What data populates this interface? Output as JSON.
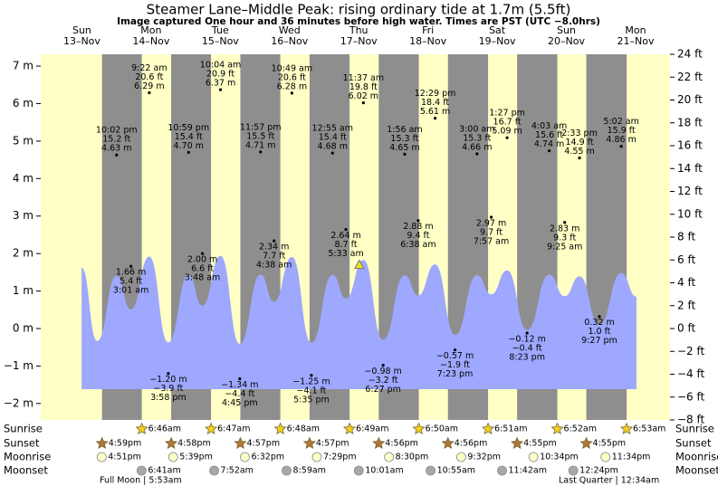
{
  "title": "Steamer Lane–Middle Peak: rising  ordinary tide at 1.7m (5.5ft)",
  "subtitle": "Image captured One hour and 36 minutes before high water. Times are PST (UTC −8.0hrs)",
  "chart_data": {
    "type": "tide",
    "ylim": [
      -2.4384,
      7.3152
    ],
    "yticks": [
      {
        "value": 7,
        "label": "7 m"
      },
      {
        "value": 6,
        "label": "6 m"
      },
      {
        "value": 5,
        "label": "5 m"
      },
      {
        "value": 4,
        "label": "4 m"
      },
      {
        "value": 3,
        "label": "3 m"
      },
      {
        "value": 2,
        "label": "2 m"
      },
      {
        "value": 1,
        "label": "1 m"
      },
      {
        "value": 0,
        "label": "0 m"
      },
      {
        "value": -1,
        "label": "−1 m"
      },
      {
        "value": -2,
        "label": "−2 m"
      }
    ],
    "y2lim": [
      -8,
      24
    ],
    "y2ticks": [
      {
        "value": 24,
        "label": "24 ft"
      },
      {
        "value": 22,
        "label": "22 ft"
      },
      {
        "value": 20,
        "label": "20 ft"
      },
      {
        "value": 18,
        "label": "18 ft"
      },
      {
        "value": 16,
        "label": "16 ft"
      },
      {
        "value": 14,
        "label": "14 ft"
      },
      {
        "value": 12,
        "label": "12 ft"
      },
      {
        "value": 10,
        "label": "10 ft"
      },
      {
        "value": 8,
        "label": "8 ft"
      },
      {
        "value": 6,
        "label": "6 ft"
      },
      {
        "value": 4,
        "label": "4 ft"
      },
      {
        "value": 2,
        "label": "2 ft"
      },
      {
        "value": 0,
        "label": "0 ft"
      },
      {
        "value": -2,
        "label": "−2 ft"
      },
      {
        "value": -4,
        "label": "−4 ft"
      },
      {
        "value": -6,
        "label": "−6 ft"
      },
      {
        "value": -8,
        "label": "−8 ft"
      }
    ],
    "colors": {
      "day": "#ffffc6",
      "night": "#8e8e8e",
      "water": "#9ea8ff",
      "date": "#e00000",
      "sunrise": "#f0d020",
      "sunset": "#b07838",
      "moonrise": "#ffffc8",
      "moonset": "#a8a8a8",
      "now": "#f0e020"
    },
    "row_labels": {
      "sunrise": "Sunrise",
      "sunset": "Sunset",
      "moonrise": "Moonrise",
      "moonset": "Moonset"
    },
    "days": [
      {
        "name": "Sun",
        "date": "13–Nov",
        "sunrise": null,
        "sunset": "4:59pm",
        "moonrise": "4:51pm",
        "moonset": null,
        "tides": [
          {
            "time": "10:02 pm",
            "m": 4.63,
            "m_label": "4.63 m",
            "ft": 15.2,
            "ft_label": "15.2 ft"
          }
        ]
      },
      {
        "name": "Mon",
        "date": "14–Nov",
        "sunrise": "6:46am",
        "sunset": "4:58pm",
        "moonrise": "5:39pm",
        "moonset": "6:41am",
        "tides": [
          {
            "time": "3:01 am",
            "m": 1.66,
            "m_label": "1.66 m",
            "ft": 5.4,
            "ft_label": "5.4 ft"
          },
          {
            "time": "9:22 am",
            "m": 6.29,
            "m_label": "6.29 m",
            "ft": 20.6,
            "ft_label": "20.6 ft"
          },
          {
            "time": "3:58 pm",
            "m": -1.2,
            "m_label": "−1.20 m",
            "ft": -3.9,
            "ft_label": "−3.9 ft"
          },
          {
            "time": "10:59 pm",
            "m": 4.7,
            "m_label": "4.70 m",
            "ft": 15.4,
            "ft_label": "15.4 ft"
          }
        ]
      },
      {
        "name": "Tue",
        "date": "15–Nov",
        "sunrise": "6:47am",
        "sunset": "4:57pm",
        "moonrise": "6:32pm",
        "moonset": "7:52am",
        "tides": [
          {
            "time": "3:48 am",
            "m": 2.0,
            "m_label": "2.00 m",
            "ft": 6.6,
            "ft_label": "6.6 ft"
          },
          {
            "time": "10:04 am",
            "m": 6.37,
            "m_label": "6.37 m",
            "ft": 20.9,
            "ft_label": "20.9 ft"
          },
          {
            "time": "4:45 pm",
            "m": -1.34,
            "m_label": "−1.34 m",
            "ft": -4.4,
            "ft_label": "−4.4 ft"
          },
          {
            "time": "11:57 pm",
            "m": 4.71,
            "m_label": "4.71 m",
            "ft": 15.5,
            "ft_label": "15.5 ft"
          }
        ]
      },
      {
        "name": "Wed",
        "date": "16–Nov",
        "sunrise": "6:48am",
        "sunset": "4:57pm",
        "moonrise": "7:29pm",
        "moonset": "8:59am",
        "tides": [
          {
            "time": "4:38 am",
            "m": 2.34,
            "m_label": "2.34 m",
            "ft": 7.7,
            "ft_label": "7.7 ft"
          },
          {
            "time": "10:49 am",
            "m": 6.28,
            "m_label": "6.28 m",
            "ft": 20.6,
            "ft_label": "20.6 ft"
          },
          {
            "time": "5:35 pm",
            "m": -1.25,
            "m_label": "−1.25 m",
            "ft": -4.1,
            "ft_label": "−4.1 ft"
          }
        ]
      },
      {
        "name": "Thu",
        "date": "17–Nov",
        "sunrise": "6:49am",
        "sunset": "4:56pm",
        "moonrise": "8:30pm",
        "moonset": "10:01am",
        "tides": [
          {
            "time": "12:55 am",
            "m": 4.68,
            "m_label": "4.68 m",
            "ft": 15.4,
            "ft_label": "15.4 ft"
          },
          {
            "time": "5:33 am",
            "m": 2.64,
            "m_label": "2.64 m",
            "ft": 8.7,
            "ft_label": "8.7 ft"
          },
          {
            "time": "11:37 am",
            "m": 6.02,
            "m_label": "6.02 m",
            "ft": 19.8,
            "ft_label": "19.8 ft"
          },
          {
            "time": "6:27 pm",
            "m": -0.98,
            "m_label": "−0.98 m",
            "ft": -3.2,
            "ft_label": "−3.2 ft"
          }
        ]
      },
      {
        "name": "Fri",
        "date": "18–Nov",
        "sunrise": "6:50am",
        "sunset": "4:56pm",
        "moonrise": "9:32pm",
        "moonset": "10:55am",
        "tides": [
          {
            "time": "1:56 am",
            "m": 4.65,
            "m_label": "4.65 m",
            "ft": 15.3,
            "ft_label": "15.3 ft"
          },
          {
            "time": "6:38 am",
            "m": 2.88,
            "m_label": "2.88 m",
            "ft": 9.4,
            "ft_label": "9.4 ft"
          },
          {
            "time": "12:29 pm",
            "m": 5.61,
            "m_label": "5.61 m",
            "ft": 18.4,
            "ft_label": "18.4 ft"
          },
          {
            "time": "7:23 pm",
            "m": -0.57,
            "m_label": "−0.57 m",
            "ft": -1.9,
            "ft_label": "−1.9 ft"
          }
        ]
      },
      {
        "name": "Sat",
        "date": "19–Nov",
        "sunrise": "6:51am",
        "sunset": "4:55pm",
        "moonrise": "10:34pm",
        "moonset": "11:42am",
        "tides": [
          {
            "time": "3:00 am",
            "m": 4.66,
            "m_label": "4.66 m",
            "ft": 15.3,
            "ft_label": "15.3 ft"
          },
          {
            "time": "7:57 am",
            "m": 2.97,
            "m_label": "2.97 m",
            "ft": 9.7,
            "ft_label": "9.7 ft"
          },
          {
            "time": "1:27 pm",
            "m": 5.09,
            "m_label": "5.09 m",
            "ft": 16.7,
            "ft_label": "16.7 ft"
          },
          {
            "time": "8:23 pm",
            "m": -0.12,
            "m_label": "−0.12 m",
            "ft": -0.4,
            "ft_label": "−0.4 ft"
          }
        ]
      },
      {
        "name": "Sun",
        "date": "20–Nov",
        "sunrise": "6:52am",
        "sunset": "4:55pm",
        "moonrise": "11:34pm",
        "moonset": "12:24pm",
        "tides": [
          {
            "time": "4:03 am",
            "m": 4.74,
            "m_label": "4.74 m",
            "ft": 15.6,
            "ft_label": "15.6 ft"
          },
          {
            "time": "9:25 am",
            "m": 2.83,
            "m_label": "2.83 m",
            "ft": 9.3,
            "ft_label": "9.3 ft"
          },
          {
            "time": "2:33 pm",
            "m": 4.55,
            "m_label": "4.55 m",
            "ft": 14.9,
            "ft_label": "14.9 ft"
          },
          {
            "time": "9:27 pm",
            "m": 0.32,
            "m_label": "0.32 m",
            "ft": 1.0,
            "ft_label": "1.0 ft"
          }
        ]
      },
      {
        "name": "Mon",
        "date": "21–Nov",
        "sunrise": "6:53am",
        "sunset": null,
        "moonrise": null,
        "moonset": null,
        "tides": [
          {
            "time": "5:02 am",
            "m": 4.86,
            "m_label": "4.86 m",
            "ft": 15.9,
            "ft_label": "15.9 ft"
          }
        ]
      }
    ],
    "tide_curve": {
      "x": [
        9.9,
        15.3,
        22.03,
        27.02,
        33.37,
        39.97,
        46.98,
        51.8,
        58.07,
        64.75,
        71.95,
        76.63,
        82.82,
        89.58,
        96.92,
        101.55,
        107.62,
        114.45,
        121.93,
        126.63,
        132.48,
        139.38,
        147.0,
        151.95,
        157.45,
        164.38,
        172.05,
        177.42,
        182.55,
        189.45,
        197.03,
        202.3
      ],
      "values": [
        1.62,
        -0.33,
        1.41,
        0.51,
        1.92,
        -0.37,
        1.43,
        0.61,
        1.94,
        -0.41,
        1.44,
        0.71,
        1.91,
        -0.38,
        1.43,
        0.8,
        1.83,
        -0.3,
        1.42,
        0.88,
        1.71,
        -0.17,
        1.42,
        0.91,
        1.55,
        -0.04,
        1.44,
        0.86,
        1.39,
        0.1,
        1.48,
        0.85
      ]
    },
    "now": {
      "x": 106.2,
      "value": 1.7
    },
    "moon_phases": [
      "Full Moon | 5:53am",
      "Last Quarter | 12:34am"
    ]
  }
}
